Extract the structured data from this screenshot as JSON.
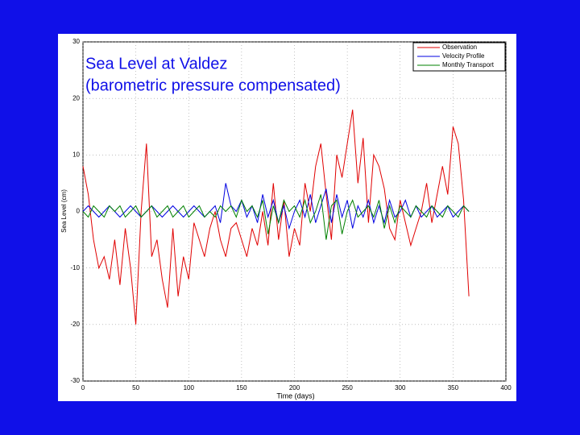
{
  "chart_data": {
    "type": "line",
    "title_lines": [
      "Sea Level at Valdez",
      "(barometric pressure compensated)"
    ],
    "x_label": "Time (days)",
    "y_label": "Sea Level (cm)",
    "xlim": [
      0,
      400
    ],
    "ylim": [
      -30,
      30
    ],
    "xticks": [
      0,
      50,
      100,
      150,
      200,
      250,
      300,
      350,
      400
    ],
    "yticks": [
      30,
      20,
      10,
      0,
      -10,
      -20,
      -30
    ],
    "grid": true,
    "legend": "upper right",
    "x": [
      0,
      5,
      10,
      15,
      20,
      25,
      30,
      35,
      40,
      45,
      50,
      55,
      60,
      65,
      70,
      75,
      80,
      85,
      90,
      95,
      100,
      105,
      110,
      115,
      120,
      125,
      130,
      135,
      140,
      145,
      150,
      155,
      160,
      165,
      170,
      175,
      180,
      185,
      190,
      195,
      200,
      205,
      210,
      215,
      220,
      225,
      230,
      235,
      240,
      245,
      250,
      255,
      260,
      265,
      270,
      275,
      280,
      285,
      290,
      295,
      300,
      305,
      310,
      315,
      320,
      325,
      330,
      335,
      340,
      345,
      350,
      355,
      360,
      365
    ],
    "series": [
      {
        "name": "Observation",
        "color": "#e00000",
        "values": [
          8,
          3,
          -5,
          -10,
          -8,
          -12,
          -5,
          -13,
          -3,
          -10,
          -20,
          0,
          12,
          -8,
          -5,
          -12,
          -17,
          -3,
          -15,
          -8,
          -12,
          -2,
          -5,
          -8,
          -3,
          0,
          -5,
          -8,
          -3,
          -2,
          -5,
          -8,
          -3,
          -6,
          0,
          -6,
          5,
          -5,
          2,
          -8,
          -3,
          -6,
          5,
          0,
          8,
          12,
          3,
          -5,
          10,
          6,
          12,
          18,
          5,
          13,
          -2,
          10,
          8,
          4,
          -3,
          -5,
          2,
          -2,
          -6,
          -3,
          0,
          5,
          -2,
          3,
          8,
          3,
          15,
          12,
          2,
          -15
        ]
      },
      {
        "name": "Velocity Profile",
        "color": "#0000e0",
        "values": [
          0,
          1,
          0,
          -1,
          0,
          1,
          0,
          -1,
          0,
          1,
          0,
          -1,
          0,
          1,
          0,
          -1,
          0,
          1,
          0,
          -1,
          0,
          1,
          0,
          -1,
          0,
          1,
          -2,
          5,
          1,
          0,
          2,
          -1,
          1,
          -2,
          3,
          -1,
          2,
          -2,
          1,
          -3,
          0,
          2,
          -1,
          3,
          -2,
          1,
          4,
          -2,
          3,
          -1,
          2,
          -3,
          1,
          -1,
          2,
          -2,
          1,
          -2,
          2,
          -1,
          0,
          2,
          -1,
          1,
          -1,
          0,
          1,
          -1,
          0,
          1,
          -1,
          0,
          1,
          0
        ]
      },
      {
        "name": "Monthly Transport",
        "color": "#008000",
        "values": [
          0,
          -1,
          1,
          0,
          -1,
          1,
          0,
          1,
          -1,
          0,
          1,
          -1,
          0,
          1,
          -1,
          0,
          1,
          -1,
          0,
          1,
          -1,
          0,
          1,
          -1,
          0,
          -1,
          1,
          0,
          1,
          -1,
          2,
          0,
          1,
          -1,
          2,
          -4,
          1,
          -2,
          2,
          0,
          1,
          -1,
          2,
          -2,
          0,
          3,
          -5,
          1,
          2,
          -4,
          0,
          2,
          -1,
          0,
          1,
          -1,
          2,
          -3,
          1,
          -2,
          1,
          0,
          -1,
          1,
          0,
          -1,
          1,
          0,
          -1,
          1,
          0,
          -1,
          1,
          0
        ]
      }
    ]
  }
}
